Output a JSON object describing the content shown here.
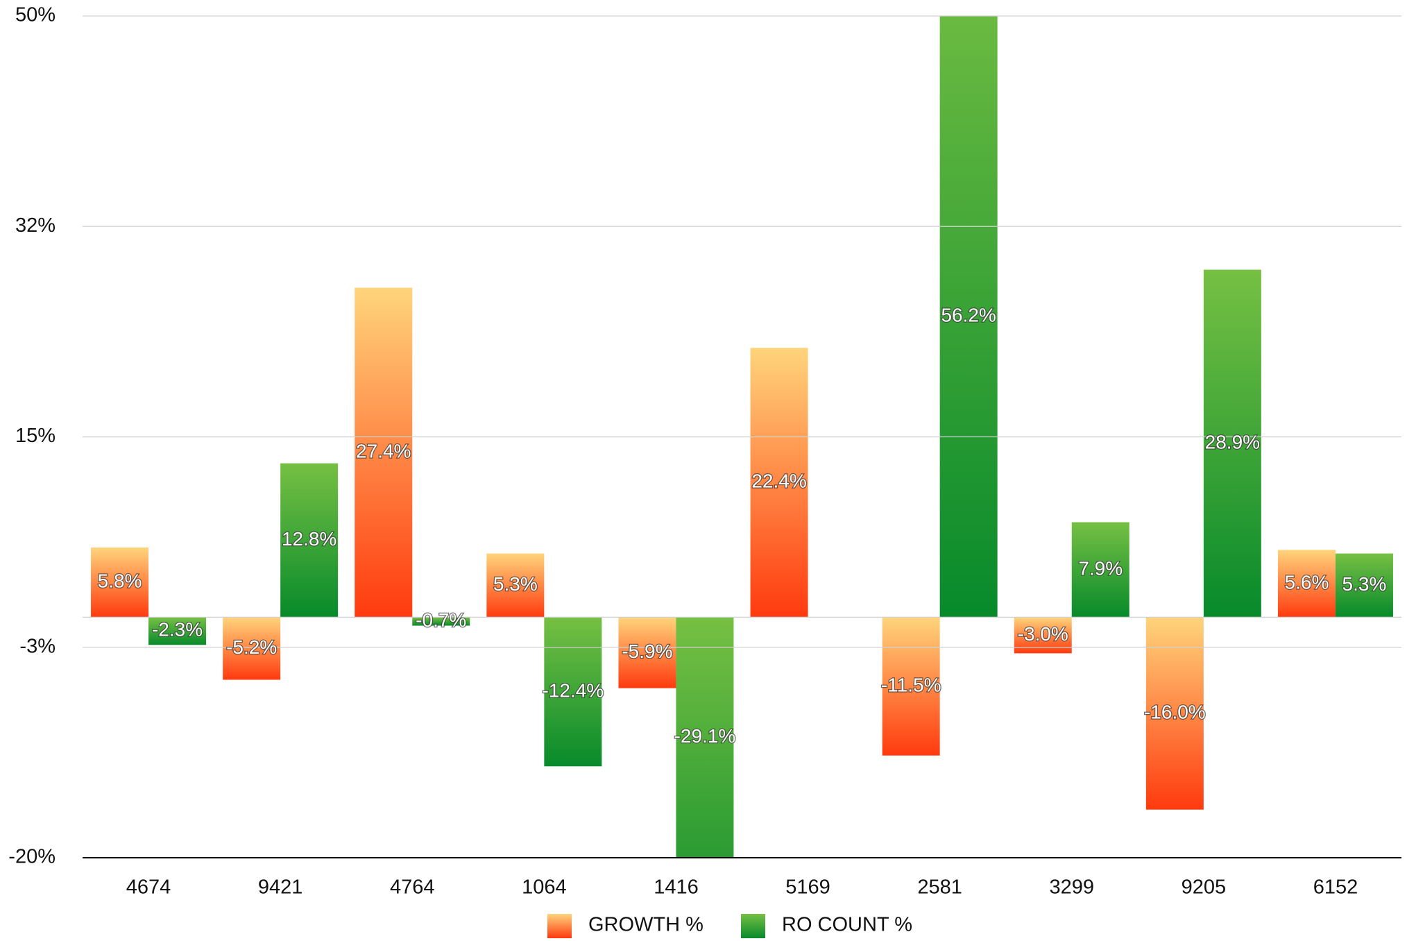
{
  "chart_data": {
    "type": "bar",
    "categories": [
      "4674",
      "9421",
      "4764",
      "1064",
      "1416",
      "5169",
      "2581",
      "3299",
      "9205",
      "6152"
    ],
    "series": [
      {
        "name": "GROWTH %",
        "color": "#ff3a0e",
        "values": [
          5.8,
          -5.2,
          27.4,
          5.3,
          -5.9,
          22.4,
          -11.5,
          -3.0,
          -16.0,
          5.6
        ],
        "value_labels": [
          "5.8%",
          "-5.2%",
          "27.4%",
          "5.3%",
          "-5.9%",
          "22.4%",
          "-11.5%",
          "-3.0%",
          "-16.0%",
          "5.6%"
        ]
      },
      {
        "name": "RO COUNT %",
        "color": "#078a2b",
        "values": [
          -2.3,
          12.8,
          -0.7,
          -12.4,
          -29.1,
          null,
          56.2,
          7.9,
          28.9,
          5.3
        ],
        "value_labels": [
          "-2.3%",
          "12.8%",
          "-0.7%",
          "-12.4%",
          "-29.1%",
          null,
          "56.2%",
          "7.9%",
          "28.9%",
          "5.3%"
        ]
      }
    ],
    "ylim": [
      -20,
      50
    ],
    "yticks": [
      {
        "value": -20,
        "label": "-20%"
      },
      {
        "value": -2.5,
        "label": "-3%"
      },
      {
        "value": 15,
        "label": "15%"
      },
      {
        "value": 32.5,
        "label": "32%"
      },
      {
        "value": 50,
        "label": "50%"
      }
    ],
    "grid": true,
    "legend": "bottom"
  }
}
